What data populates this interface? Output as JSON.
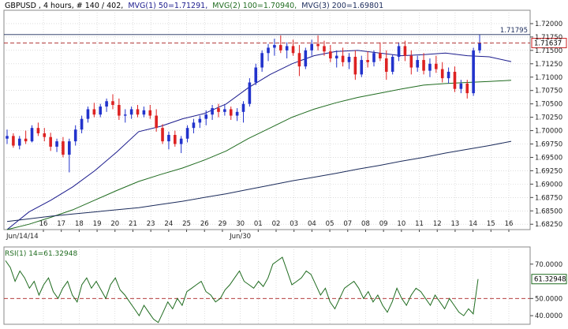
{
  "header": {
    "symbol_info": "GBPUSD , 4 hours, # 140 / 402,",
    "mvg1": "MVG(1) 50=1.71291,",
    "mvg2": "MVG(2) 100=1.70940,",
    "mvg3": "MVG(3) 200=1.69801",
    "mvg1_color": "#1a1a8c",
    "mvg2_color": "#1f6b1f",
    "mvg3_color": "#1a2a5a"
  },
  "rsi_header": {
    "label": "RSI(1) 14=61.32948",
    "color": "#1f6b1f"
  },
  "colors": {
    "bull": "#2233cc",
    "bear": "#dd2222",
    "grid": "#c8c8c8",
    "dashed_level": "#aa2222",
    "price_tag_border": "#cc2222"
  },
  "chart_data": [
    {
      "type": "candlestick",
      "title": "GBPUSD , 4 hours",
      "ylim": [
        1.6815,
        1.7225
      ],
      "y_ticks": [
        "1.72000",
        "1.71750",
        "1.71500",
        "1.71250",
        "1.71000",
        "1.70750",
        "1.70500",
        "1.70250",
        "1.70000",
        "1.69750",
        "1.69500",
        "1.69250",
        "1.69000",
        "1.68750",
        "1.68500",
        "1.68250"
      ],
      "x_tick_labels": [
        "16",
        "17",
        "18",
        "19",
        "20",
        "21",
        "23",
        "24",
        "25",
        "26",
        "29",
        "30",
        "01",
        "02",
        "03",
        "04",
        "05",
        "07",
        "08",
        "09",
        "10",
        "11",
        "12",
        "13",
        "14",
        "15",
        "16"
      ],
      "date_labels": [
        "Jun/14/14",
        "Jun/30"
      ],
      "reference_lines": [
        {
          "label": "1.71795",
          "value": 1.71795,
          "style": "solid"
        },
        {
          "label": "1.71637",
          "value": 1.71637,
          "style": "dashed"
        }
      ],
      "current_price": "1.71637",
      "series": [
        {
          "name": "MVG(1) 50",
          "color": "#1a1a8c",
          "values": [
            1.6815,
            1.6848,
            1.687,
            1.6895,
            1.6925,
            1.696,
            1.6998,
            1.7008,
            1.7022,
            1.7032,
            1.705,
            1.708,
            1.7105,
            1.7125,
            1.714,
            1.7148,
            1.715,
            1.7145,
            1.714,
            1.7142,
            1.7145,
            1.714,
            1.7138,
            1.7129
          ]
        },
        {
          "name": "MVG(2) 100",
          "color": "#1f6b1f",
          "values": [
            1.6815,
            1.6825,
            1.6838,
            1.6852,
            1.687,
            1.6888,
            1.6905,
            1.6918,
            1.693,
            1.6945,
            1.6962,
            1.6985,
            1.7005,
            1.7025,
            1.704,
            1.7052,
            1.7062,
            1.707,
            1.7078,
            1.7085,
            1.7088,
            1.709,
            1.7092,
            1.7094
          ]
        },
        {
          "name": "MVG(3) 200",
          "color": "#1a2a5a",
          "values": [
            1.683,
            1.6835,
            1.684,
            1.6844,
            1.6848,
            1.6852,
            1.6856,
            1.6862,
            1.6868,
            1.6875,
            1.6882,
            1.689,
            1.6898,
            1.6906,
            1.6913,
            1.692,
            1.6928,
            1.6935,
            1.6943,
            1.695,
            1.6958,
            1.6965,
            1.6972,
            1.698
          ]
        }
      ],
      "candles": [
        [
          1.6985,
          1.7002,
          1.6975,
          1.699
        ],
        [
          1.699,
          1.6995,
          1.6968,
          1.6972
        ],
        [
          1.6972,
          1.699,
          1.6965,
          1.6985
        ],
        [
          1.6985,
          1.7,
          1.6975,
          1.698
        ],
        [
          1.698,
          1.701,
          1.6978,
          1.7005
        ],
        [
          1.7005,
          1.7015,
          1.699,
          1.6995
        ],
        [
          1.6995,
          1.7005,
          1.698,
          1.6988
        ],
        [
          1.6988,
          1.6996,
          1.6962,
          1.697
        ],
        [
          1.697,
          1.6985,
          1.696,
          1.698
        ],
        [
          1.698,
          1.6988,
          1.695,
          1.6955
        ],
        [
          1.6955,
          1.6985,
          1.6922,
          1.698
        ],
        [
          1.698,
          1.701,
          1.6972,
          1.7002
        ],
        [
          1.7002,
          1.7028,
          1.6995,
          1.7022
        ],
        [
          1.7022,
          1.7045,
          1.7015,
          1.704
        ],
        [
          1.704,
          1.7052,
          1.7025,
          1.703
        ],
        [
          1.703,
          1.705,
          1.7025,
          1.7045
        ],
        [
          1.7045,
          1.706,
          1.7035,
          1.7055
        ],
        [
          1.7055,
          1.7068,
          1.704,
          1.7048
        ],
        [
          1.7048,
          1.706,
          1.702,
          1.7028
        ],
        [
          1.7028,
          1.704,
          1.7015,
          1.703
        ],
        [
          1.703,
          1.7045,
          1.7022,
          1.704
        ],
        [
          1.704,
          1.7048,
          1.7025,
          1.703
        ],
        [
          1.703,
          1.7045,
          1.7025,
          1.7038
        ],
        [
          1.7038,
          1.7048,
          1.7022,
          1.7028
        ],
        [
          1.7028,
          1.704,
          1.6998,
          1.7005
        ],
        [
          1.7005,
          1.7012,
          1.6975,
          1.698
        ],
        [
          1.698,
          1.6998,
          1.6965,
          1.6992
        ],
        [
          1.6992,
          1.7,
          1.697,
          1.6975
        ],
        [
          1.6975,
          1.699,
          1.6958,
          1.6985
        ],
        [
          1.6985,
          1.701,
          1.6978,
          1.7005
        ],
        [
          1.7005,
          1.7022,
          1.6995,
          1.7015
        ],
        [
          1.7015,
          1.7028,
          1.7005,
          1.7022
        ],
        [
          1.7022,
          1.7038,
          1.701,
          1.703
        ],
        [
          1.703,
          1.7048,
          1.702,
          1.7042
        ],
        [
          1.7042,
          1.705,
          1.7025,
          1.7035
        ],
        [
          1.7035,
          1.7048,
          1.7028,
          1.704
        ],
        [
          1.704,
          1.7045,
          1.702,
          1.7028
        ],
        [
          1.7028,
          1.7042,
          1.7018,
          1.7035
        ],
        [
          1.7035,
          1.7055,
          1.7015,
          1.705
        ],
        [
          1.705,
          1.7098,
          1.7045,
          1.709
        ],
        [
          1.709,
          1.7125,
          1.7085,
          1.7118
        ],
        [
          1.7118,
          1.715,
          1.711,
          1.7145
        ],
        [
          1.7145,
          1.7162,
          1.713,
          1.7155
        ],
        [
          1.7155,
          1.7172,
          1.714,
          1.716
        ],
        [
          1.716,
          1.7178,
          1.7145,
          1.715
        ],
        [
          1.715,
          1.7165,
          1.7135,
          1.7158
        ],
        [
          1.7158,
          1.717,
          1.714,
          1.7145
        ],
        [
          1.7145,
          1.716,
          1.7102,
          1.712
        ],
        [
          1.712,
          1.7155,
          1.7115,
          1.715
        ],
        [
          1.715,
          1.717,
          1.714,
          1.7162
        ],
        [
          1.7162,
          1.7178,
          1.715,
          1.7158
        ],
        [
          1.7158,
          1.7168,
          1.714,
          1.7148
        ],
        [
          1.7148,
          1.716,
          1.7128,
          1.7135
        ],
        [
          1.7135,
          1.715,
          1.7118,
          1.714
        ],
        [
          1.714,
          1.7155,
          1.712,
          1.7128
        ],
        [
          1.7128,
          1.7145,
          1.7115,
          1.7138
        ],
        [
          1.7138,
          1.715,
          1.7095,
          1.7105
        ],
        [
          1.7105,
          1.714,
          1.71,
          1.7132
        ],
        [
          1.7132,
          1.7148,
          1.7118,
          1.7128
        ],
        [
          1.7128,
          1.715,
          1.712,
          1.7145
        ],
        [
          1.7145,
          1.7165,
          1.713,
          1.7135
        ],
        [
          1.7135,
          1.715,
          1.7095,
          1.711
        ],
        [
          1.711,
          1.7142,
          1.7105,
          1.7138
        ],
        [
          1.7138,
          1.7165,
          1.713,
          1.7158
        ],
        [
          1.7158,
          1.7168,
          1.713,
          1.714
        ],
        [
          1.714,
          1.715,
          1.7105,
          1.7118
        ],
        [
          1.7118,
          1.714,
          1.711,
          1.7132
        ],
        [
          1.7132,
          1.7145,
          1.7105,
          1.7112
        ],
        [
          1.7112,
          1.7135,
          1.71,
          1.7125
        ],
        [
          1.7125,
          1.714,
          1.7108,
          1.7115
        ],
        [
          1.7115,
          1.7128,
          1.709,
          1.7098
        ],
        [
          1.7098,
          1.7118,
          1.7088,
          1.711
        ],
        [
          1.711,
          1.712,
          1.7072,
          1.7078
        ],
        [
          1.7078,
          1.7095,
          1.707,
          1.7088
        ],
        [
          1.7088,
          1.7095,
          1.706,
          1.707
        ],
        [
          1.707,
          1.7155,
          1.7065,
          1.715
        ],
        [
          1.715,
          1.718,
          1.7145,
          1.7164
        ]
      ]
    },
    {
      "type": "line",
      "title": "RSI(1) 14=61.32948",
      "ylim": [
        35,
        80
      ],
      "y_ticks": [
        "70.0000",
        "50.0000",
        "40.0000"
      ],
      "current_value": "61.32948",
      "reference_lines": [
        {
          "value": 50,
          "style": "dashed"
        }
      ],
      "series": [
        {
          "name": "RSI(1) 14",
          "color": "#1f6b1f",
          "values": [
            72,
            68,
            60,
            66,
            62,
            56,
            60,
            52,
            58,
            62,
            54,
            50,
            56,
            60,
            52,
            48,
            58,
            62,
            56,
            60,
            55,
            50,
            58,
            62,
            55,
            52,
            48,
            44,
            40,
            46,
            42,
            38,
            36,
            42,
            48,
            44,
            50,
            46,
            54,
            56,
            58,
            60,
            54,
            52,
            48,
            50,
            55,
            58,
            62,
            66,
            60,
            58,
            56,
            60,
            57,
            62,
            70,
            72,
            74,
            66,
            58,
            60,
            62,
            66,
            64,
            58,
            52,
            56,
            48,
            44,
            50,
            56,
            58,
            60,
            56,
            50,
            54,
            48,
            52,
            46,
            42,
            48,
            56,
            50,
            46,
            52,
            56,
            54,
            50,
            46,
            52,
            48,
            44,
            50,
            46,
            42,
            40,
            44,
            41,
            61.3
          ]
        }
      ]
    }
  ]
}
